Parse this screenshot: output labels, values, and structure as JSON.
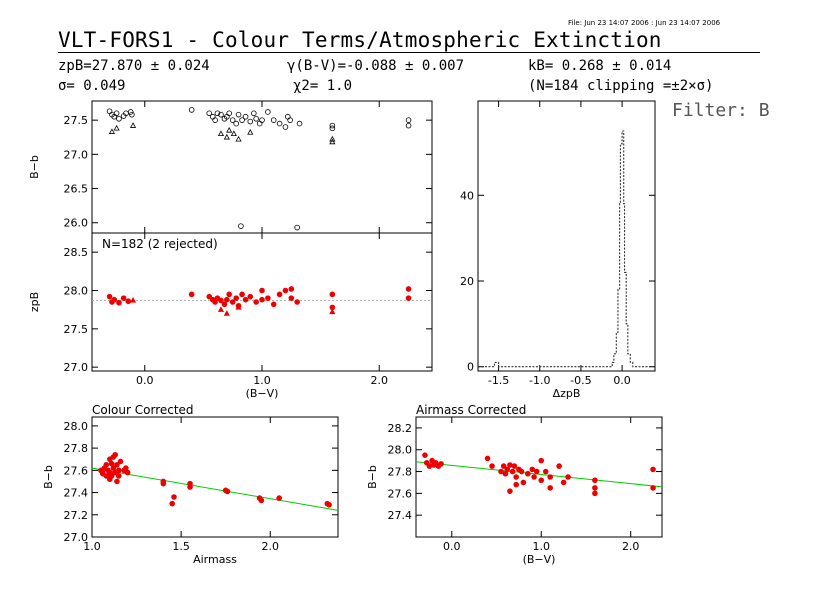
{
  "header": {
    "file_info": "File: Jun 23 14:07 2006 : Jun 23 14:07 2006",
    "title": "VLT-FORS1 - Colour Terms/Atmospheric Extinction",
    "filter": "Filter: B"
  },
  "stats": {
    "zp": "zpB=27.870 ± 0.024",
    "sigma": "σ= 0.049",
    "gamma": "γ(B-V)=-0.088 ± 0.007",
    "chi2": "χ2= 1.0",
    "k": "kB= 0.268 ± 0.014",
    "clipping": "(N=184 clipping =±2×σ)"
  },
  "colors": {
    "fit_line": "#00cc00",
    "data_red": "#ee0000",
    "hist": "#333333",
    "ref_line": "#999999"
  },
  "chart_data": [
    {
      "id": "raw",
      "type": "scatter",
      "title": "",
      "xlabel": "",
      "ylabel": "B−b",
      "xlim": [
        -0.45,
        2.45
      ],
      "ylim": [
        25.85,
        27.78
      ],
      "yticks": [
        26.0,
        26.5,
        27.0,
        27.5
      ],
      "series": [
        {
          "marker": "circle",
          "x": [
            -0.3,
            -0.28,
            -0.26,
            -0.24,
            -0.22,
            -0.18,
            -0.16,
            -0.12,
            -0.11,
            0.4,
            0.55,
            0.58,
            0.6,
            0.62,
            0.65,
            0.68,
            0.7,
            0.72,
            0.75,
            0.78,
            0.8,
            0.83,
            0.86,
            0.9,
            0.93,
            0.95,
            0.98,
            1.0,
            1.05,
            1.1,
            1.15,
            1.2,
            1.22,
            1.24,
            1.32,
            1.6,
            1.6,
            2.25,
            2.25,
            0.82,
            1.3
          ],
          "y": [
            27.63,
            27.58,
            27.55,
            27.6,
            27.52,
            27.56,
            27.6,
            27.62,
            27.58,
            27.65,
            27.6,
            27.55,
            27.5,
            27.6,
            27.58,
            27.52,
            27.55,
            27.6,
            27.5,
            27.45,
            27.58,
            27.5,
            27.55,
            27.48,
            27.6,
            27.52,
            27.45,
            27.5,
            27.62,
            27.5,
            27.45,
            27.4,
            27.55,
            27.5,
            27.45,
            27.42,
            27.38,
            27.5,
            27.42,
            25.95,
            25.93
          ]
        },
        {
          "marker": "triangle",
          "x": [
            -0.28,
            -0.24,
            -0.1,
            0.65,
            0.7,
            0.72,
            0.76,
            0.8,
            0.9,
            1.6,
            1.6
          ],
          "y": [
            27.33,
            27.38,
            27.42,
            27.3,
            27.25,
            27.35,
            27.3,
            27.22,
            27.32,
            27.18,
            27.22
          ]
        }
      ]
    },
    {
      "id": "zp",
      "type": "scatter",
      "title": "",
      "annotation": "N=182 (2 rejected)",
      "xlabel": "(B−V)",
      "ylabel": "zpB",
      "xlim": [
        -0.45,
        2.45
      ],
      "ylim": [
        26.95,
        28.75
      ],
      "yticks": [
        27.0,
        27.5,
        28.0,
        28.5
      ],
      "xticks": [
        0.0,
        1.0,
        2.0
      ],
      "ref_y": 27.87,
      "series": [
        {
          "marker": "dot",
          "x": [
            -0.3,
            -0.28,
            -0.26,
            -0.22,
            -0.18,
            -0.14,
            0.4,
            0.55,
            0.58,
            0.6,
            0.62,
            0.65,
            0.68,
            0.7,
            0.72,
            0.75,
            0.78,
            0.8,
            0.83,
            0.86,
            0.9,
            0.95,
            1.0,
            1.0,
            1.05,
            1.1,
            1.15,
            1.2,
            1.25,
            1.25,
            1.3,
            1.6,
            1.6,
            2.25,
            2.25
          ],
          "y": [
            27.92,
            27.85,
            27.88,
            27.84,
            27.9,
            27.86,
            27.95,
            27.92,
            27.88,
            27.85,
            27.9,
            27.87,
            27.82,
            27.88,
            27.95,
            27.85,
            27.9,
            27.8,
            27.95,
            27.88,
            27.92,
            27.85,
            28.0,
            27.88,
            27.9,
            27.82,
            27.95,
            28.0,
            28.02,
            27.9,
            27.85,
            27.95,
            27.78,
            28.02,
            27.9
          ]
        },
        {
          "marker": "triangle",
          "x": [
            -0.1,
            0.65,
            0.7,
            0.8,
            1.6
          ],
          "y": [
            27.87,
            27.75,
            27.7,
            27.78,
            27.72
          ]
        }
      ]
    },
    {
      "id": "hist",
      "type": "histogram",
      "title": "",
      "xlabel": "ΔzpB",
      "ylabel": "",
      "xlim": [
        -1.75,
        0.4
      ],
      "ylim": [
        -1,
        62
      ],
      "yticks": [
        0,
        20,
        40
      ],
      "xticks": [
        -1.5,
        -1.0,
        -0.5,
        0.0
      ],
      "bins_x": [
        -1.75,
        -1.55,
        -1.52,
        -1.5,
        -0.12,
        -0.1,
        -0.07,
        -0.05,
        -0.03,
        -0.02,
        0.0,
        0.02,
        0.03,
        0.05,
        0.07,
        0.1,
        0.13,
        0.2,
        0.4
      ],
      "counts": [
        0,
        1,
        1,
        0,
        1,
        3,
        8,
        18,
        38,
        52,
        55,
        38,
        22,
        10,
        3,
        1,
        0,
        0
      ]
    },
    {
      "id": "colour_corrected",
      "type": "scatter",
      "title": "Colour Corrected",
      "xlabel": "Airmass",
      "ylabel": "B−b",
      "xlim": [
        1.0,
        2.38
      ],
      "ylim": [
        27.0,
        28.08
      ],
      "yticks": [
        27.0,
        27.2,
        27.4,
        27.6,
        27.8,
        28.0
      ],
      "xticks": [
        1.0,
        1.5,
        2.0
      ],
      "fit": [
        [
          1.0,
          27.62
        ],
        [
          2.38,
          27.24
        ]
      ],
      "series": [
        {
          "marker": "dot",
          "x": [
            1.05,
            1.06,
            1.07,
            1.08,
            1.08,
            1.09,
            1.1,
            1.1,
            1.11,
            1.12,
            1.12,
            1.13,
            1.14,
            1.15,
            1.15,
            1.16,
            1.18,
            1.2,
            1.06,
            1.1,
            1.14,
            1.13,
            1.19,
            1.11,
            1.4,
            1.4,
            1.45,
            1.46,
            1.55,
            1.55,
            1.75,
            1.76,
            1.94,
            1.95,
            2.05,
            2.32,
            2.33
          ],
          "y": [
            27.6,
            27.58,
            27.62,
            27.55,
            27.65,
            27.6,
            27.58,
            27.7,
            27.55,
            27.62,
            27.72,
            27.58,
            27.65,
            27.55,
            27.6,
            27.68,
            27.6,
            27.58,
            27.57,
            27.52,
            27.5,
            27.74,
            27.62,
            27.66,
            27.48,
            27.5,
            27.3,
            27.36,
            27.45,
            27.48,
            27.42,
            27.41,
            27.35,
            27.33,
            27.35,
            27.3,
            27.29
          ]
        }
      ]
    },
    {
      "id": "airmass_corrected",
      "type": "scatter",
      "title": "Airmass Corrected",
      "xlabel": "(B−V)",
      "ylabel": "B−b",
      "xlim": [
        -0.4,
        2.35
      ],
      "ylim": [
        27.2,
        28.3
      ],
      "yticks": [
        27.4,
        27.6,
        27.8,
        28.0,
        28.2
      ],
      "xticks": [
        0.0,
        1.0,
        2.0
      ],
      "fit": [
        [
          -0.4,
          27.89
        ],
        [
          2.35,
          27.66
        ]
      ],
      "series": [
        {
          "marker": "dot",
          "x": [
            -0.3,
            -0.28,
            -0.25,
            -0.22,
            -0.2,
            -0.18,
            -0.15,
            -0.12,
            0.4,
            0.45,
            0.55,
            0.58,
            0.6,
            0.62,
            0.65,
            0.68,
            0.7,
            0.72,
            0.75,
            0.78,
            0.8,
            0.85,
            0.9,
            0.92,
            0.95,
            1.0,
            1.0,
            1.05,
            1.1,
            1.1,
            1.2,
            1.25,
            1.3,
            1.6,
            1.6,
            1.6,
            2.25,
            2.25,
            0.65,
            0.72
          ],
          "y": [
            27.95,
            27.88,
            27.85,
            27.9,
            27.86,
            27.88,
            27.85,
            27.87,
            27.92,
            27.85,
            27.8,
            27.85,
            27.78,
            27.82,
            27.86,
            27.8,
            27.85,
            27.75,
            27.82,
            27.8,
            27.7,
            27.78,
            27.82,
            27.75,
            27.8,
            27.9,
            27.72,
            27.8,
            27.65,
            27.75,
            27.85,
            27.7,
            27.75,
            27.72,
            27.6,
            27.65,
            27.82,
            27.65,
            27.62,
            27.68
          ]
        }
      ]
    }
  ]
}
